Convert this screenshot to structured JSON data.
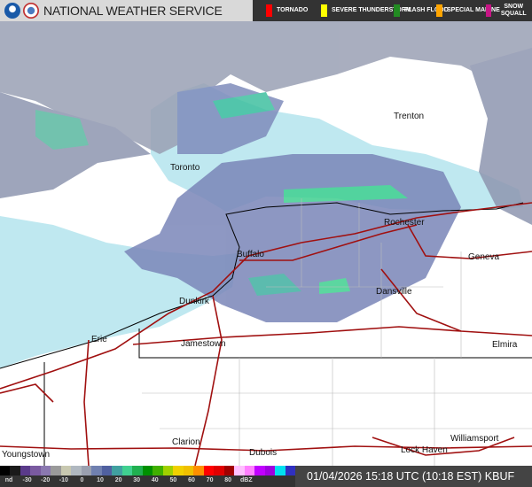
{
  "header": {
    "title": "NATIONAL WEATHER SERVICE",
    "warnings": [
      {
        "label": "TORNADO",
        "color": "#ff0000"
      },
      {
        "label": "SEVERE THUNDERSTORM",
        "color": "#ffff00"
      },
      {
        "label": "FLASH FLOOD",
        "color": "#228b22"
      },
      {
        "label": "SPECIAL MARINE",
        "color": "#ffa500"
      },
      {
        "label": "SNOW SQUALL",
        "color": "#c71585"
      }
    ]
  },
  "map": {
    "cities": [
      {
        "name": "Trenton"
      },
      {
        "name": "Toronto"
      },
      {
        "name": "Rochester"
      },
      {
        "name": "Buffalo"
      },
      {
        "name": "Geneva"
      },
      {
        "name": "Dansville"
      },
      {
        "name": "Dunkirk"
      },
      {
        "name": "Jamestown"
      },
      {
        "name": "Erie"
      },
      {
        "name": "Elmira"
      },
      {
        "name": "Clarion"
      },
      {
        "name": "Dubois"
      },
      {
        "name": "Youngstown"
      },
      {
        "name": "Lock Haven"
      },
      {
        "name": "Williamsport"
      }
    ],
    "colors": {
      "water": "#bfe8f0",
      "roads": "#a01010",
      "borders": "#000000",
      "radar_light": "#9aa0b4",
      "radar_mid": "#6a78b0",
      "radar_heavy": "#3cc08a"
    }
  },
  "legend": {
    "colors": [
      "#000000",
      "#1a1a1a",
      "#5a3a8a",
      "#7a5aa0",
      "#8a78b0",
      "#9a9a9a",
      "#c8c8b0",
      "#b0b8c0",
      "#9aa0b0",
      "#7080b0",
      "#5060a0",
      "#40a0a0",
      "#40d090",
      "#20b050",
      "#009000",
      "#40b000",
      "#a0d000",
      "#f0d000",
      "#f0c000",
      "#ff9000",
      "#ff0000",
      "#e00000",
      "#a00000",
      "#ffc0ff",
      "#ff80ff",
      "#c000ff",
      "#a000e0",
      "#00e0f0",
      "#3030c0"
    ],
    "ticks": [
      "nd",
      "-30",
      "-20",
      "-10",
      "0",
      "10",
      "20",
      "30",
      "40",
      "50",
      "60",
      "70",
      "80",
      "dBZ"
    ]
  },
  "timestamp": "01/04/2026 15:18 UTC (10:18 EST) KBUF"
}
